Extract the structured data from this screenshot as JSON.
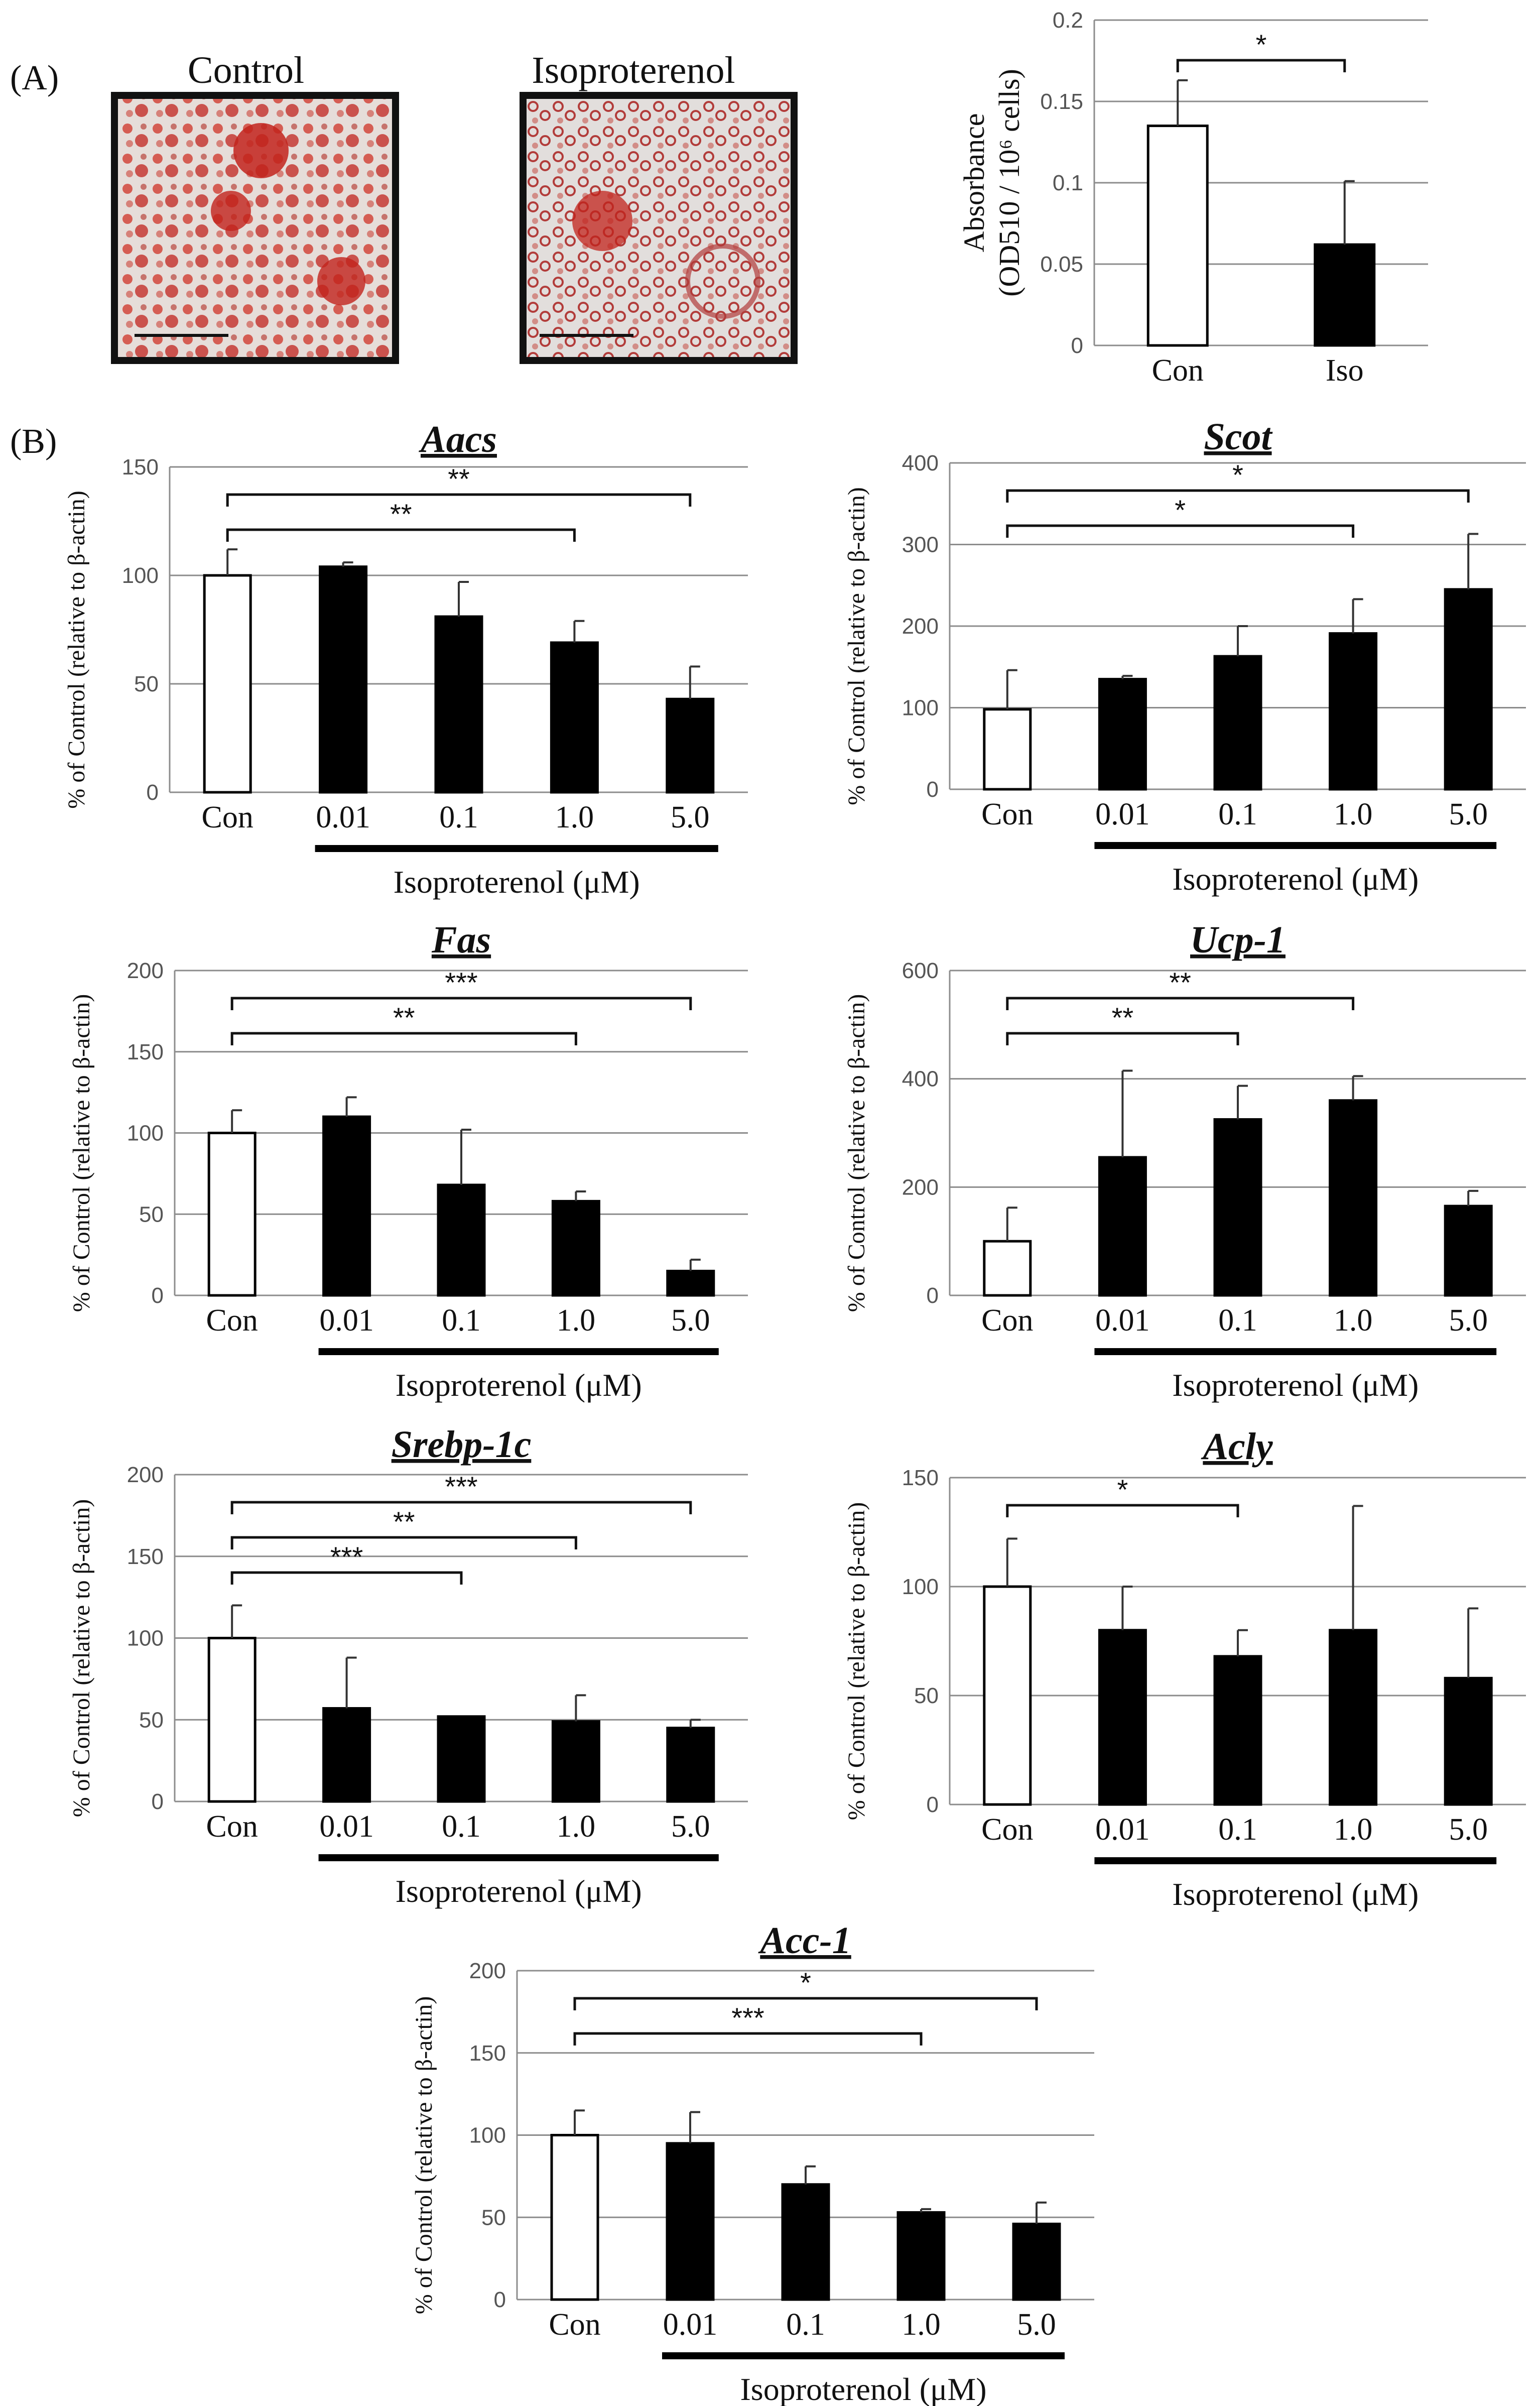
{
  "panel_labels": {
    "a": "(A)",
    "b": "(B)"
  },
  "micrographs": [
    {
      "caption": "Control"
    },
    {
      "caption": "Isoproterenol"
    }
  ],
  "colors": {
    "control_bar": "#ffffff",
    "treated_bar": "#000000",
    "grid": "#8c8c8c",
    "tint": "#d2463c"
  },
  "chart_data": [
    {
      "id": "absorbance",
      "type": "bar",
      "title": "",
      "ylabel": "Absorbance (OD510 / 10⁶ cells)",
      "ylabel_line1": "Absorbance",
      "ylabel_line2": "(OD510 / 10⁶ cells)",
      "xlabel": "",
      "categories": [
        "Con",
        "Iso"
      ],
      "values": [
        0.135,
        0.062
      ],
      "errors": [
        0.028,
        0.039
      ],
      "ylim": [
        0,
        0.2
      ],
      "yticks": [
        "0",
        "0.05",
        "0.1",
        "0.15",
        "0.2"
      ],
      "significance": [
        {
          "from": 0,
          "to": 1,
          "label": "*"
        }
      ]
    },
    {
      "id": "aacs",
      "type": "bar",
      "title": "Aacs",
      "ylabel": "% of Control (relative to β-actin)",
      "xlabel": "Isoproterenol    (μM)",
      "categories": [
        "Con",
        "0.01",
        "0.1",
        "1.0",
        "5.0"
      ],
      "values": [
        100,
        104,
        81,
        69,
        43
      ],
      "errors": [
        12,
        2,
        16,
        10,
        15
      ],
      "ylim": [
        0,
        150
      ],
      "yticks": [
        "0",
        "50",
        "100",
        "150"
      ],
      "significance": [
        {
          "from": 0,
          "to": 3,
          "label": "**"
        },
        {
          "from": 0,
          "to": 4,
          "label": "**"
        }
      ]
    },
    {
      "id": "scot",
      "type": "bar",
      "title": "Scot",
      "ylabel": "% of Control (relative to β-actin)",
      "xlabel": "Isoproterenol    (μM)",
      "categories": [
        "Con",
        "0.01",
        "0.1",
        "1.0",
        "5.0"
      ],
      "values": [
        98,
        135,
        163,
        191,
        245
      ],
      "errors": [
        48,
        4,
        37,
        42,
        68
      ],
      "ylim": [
        0,
        400
      ],
      "yticks": [
        "0",
        "100",
        "200",
        "300",
        "400"
      ],
      "significance": [
        {
          "from": 0,
          "to": 3,
          "label": "*"
        },
        {
          "from": 0,
          "to": 4,
          "label": "*"
        }
      ]
    },
    {
      "id": "fas",
      "type": "bar",
      "title": "Fas",
      "ylabel": "% of Control (relative to β-actin)",
      "xlabel": "Isoproterenol    (μM)",
      "categories": [
        "Con",
        "0.01",
        "0.1",
        "1.0",
        "5.0"
      ],
      "values": [
        100,
        110,
        68,
        58,
        15
      ],
      "errors": [
        14,
        12,
        34,
        6,
        7
      ],
      "ylim": [
        0,
        200
      ],
      "yticks": [
        "0",
        "50",
        "100",
        "150",
        "200"
      ],
      "significance": [
        {
          "from": 0,
          "to": 3,
          "label": "**"
        },
        {
          "from": 0,
          "to": 4,
          "label": "***"
        }
      ]
    },
    {
      "id": "ucp1",
      "type": "bar",
      "title": "Ucp-1",
      "ylabel": "% of Control (relative to β-actin)",
      "xlabel": "Isoproterenol    (μM)",
      "categories": [
        "Con",
        "0.01",
        "0.1",
        "1.0",
        "5.0"
      ],
      "values": [
        100,
        255,
        325,
        360,
        165
      ],
      "errors": [
        62,
        160,
        62,
        45,
        28
      ],
      "ylim": [
        0,
        600
      ],
      "yticks": [
        "0",
        "200",
        "400",
        "600"
      ],
      "significance": [
        {
          "from": 0,
          "to": 2,
          "label": "**"
        },
        {
          "from": 0,
          "to": 3,
          "label": "**"
        }
      ]
    },
    {
      "id": "srebp1c",
      "type": "bar",
      "title": "Srebp-1c",
      "ylabel": "% of Control (relative to β-actin)",
      "xlabel": "Isoproterenol    (μM)",
      "categories": [
        "Con",
        "0.01",
        "0.1",
        "1.0",
        "5.0"
      ],
      "values": [
        100,
        57,
        52,
        49,
        45
      ],
      "errors": [
        20,
        31,
        0,
        16,
        5
      ],
      "ylim": [
        0,
        200
      ],
      "yticks": [
        "0",
        "50",
        "100",
        "150",
        "200"
      ],
      "significance": [
        {
          "from": 0,
          "to": 2,
          "label": "***"
        },
        {
          "from": 0,
          "to": 3,
          "label": "**"
        },
        {
          "from": 0,
          "to": 4,
          "label": "***"
        }
      ]
    },
    {
      "id": "acly",
      "type": "bar",
      "title": "Acly",
      "ylabel": "% of Control (relative to β-actin)",
      "xlabel": "Isoproterenol    (μM)",
      "categories": [
        "Con",
        "0.01",
        "0.1",
        "1.0",
        "5.0"
      ],
      "values": [
        100,
        80,
        68,
        80,
        58
      ],
      "errors": [
        22,
        20,
        12,
        57,
        32
      ],
      "ylim": [
        0,
        150
      ],
      "yticks": [
        "0",
        "50",
        "100",
        "150"
      ],
      "significance": [
        {
          "from": 0,
          "to": 2,
          "label": "*"
        }
      ]
    },
    {
      "id": "acc1",
      "type": "bar",
      "title": "Acc-1",
      "ylabel": "% of Control (relative to β-actin)",
      "xlabel": "Isoproterenol    (μM)",
      "categories": [
        "Con",
        "0.01",
        "0.1",
        "1.0",
        "5.0"
      ],
      "values": [
        100,
        95,
        70,
        53,
        46
      ],
      "errors": [
        15,
        19,
        11,
        2,
        13
      ],
      "ylim": [
        0,
        200
      ],
      "yticks": [
        "0",
        "50",
        "100",
        "150",
        "200"
      ],
      "significance": [
        {
          "from": 0,
          "to": 3,
          "label": "***"
        },
        {
          "from": 0,
          "to": 4,
          "label": "*"
        }
      ]
    }
  ]
}
